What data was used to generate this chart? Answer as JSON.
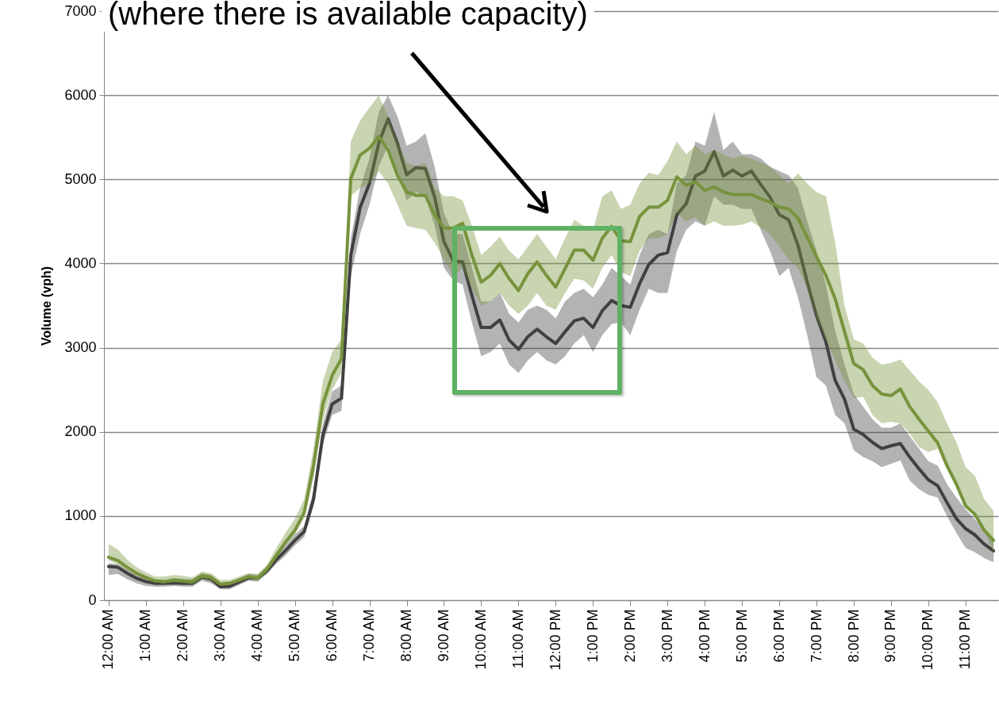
{
  "chart_data": {
    "type": "line",
    "ylabel": "Volume (vph)",
    "annotations": [
      "(where there is available capacity)"
    ],
    "x": [
      0,
      0.25,
      0.5,
      0.75,
      1,
      1.25,
      1.5,
      1.75,
      2,
      2.25,
      2.5,
      2.75,
      3,
      3.25,
      3.5,
      3.75,
      4,
      4.25,
      4.5,
      4.75,
      5,
      5.25,
      5.5,
      5.75,
      6,
      6.25,
      6.5,
      6.75,
      7,
      7.25,
      7.5,
      7.75,
      8,
      8.25,
      8.5,
      8.75,
      9,
      9.25,
      9.5,
      9.75,
      10,
      10.25,
      10.5,
      10.75,
      11,
      11.25,
      11.5,
      11.75,
      12,
      12.25,
      12.5,
      12.75,
      13,
      13.25,
      13.5,
      13.75,
      14,
      14.25,
      14.5,
      14.75,
      15,
      15.25,
      15.5,
      15.75,
      16,
      16.25,
      16.5,
      16.75,
      17,
      17.25,
      17.5,
      17.75,
      18,
      18.25,
      18.5,
      18.75,
      19,
      19.25,
      19.5,
      19.75,
      20,
      20.25,
      20.5,
      20.75,
      21,
      21.25,
      21.5,
      21.75,
      22,
      22.25,
      22.5,
      22.75,
      23,
      23.25,
      23.5,
      23.75
    ],
    "series": [
      {
        "color": "#404040",
        "values": [
          400,
          390,
          320,
          260,
          220,
          200,
          200,
          205,
          200,
          200,
          270,
          250,
          160,
          165,
          215,
          265,
          260,
          350,
          480,
          590,
          710,
          815,
          1200,
          1960,
          2330,
          2400,
          4100,
          4665,
          4950,
          5430,
          5720,
          5430,
          5055,
          5140,
          5130,
          4790,
          4260,
          4030,
          4020,
          3620,
          3240,
          3240,
          3330,
          3090,
          2980,
          3130,
          3220,
          3130,
          3050,
          3190,
          3320,
          3350,
          3240,
          3440,
          3560,
          3500,
          3480,
          3760,
          3990,
          4100,
          4130,
          4580,
          4710,
          5040,
          5100,
          5330,
          5040,
          5110,
          5040,
          5100,
          4940,
          4790,
          4580,
          4520,
          4220,
          3780,
          3380,
          3070,
          2610,
          2390,
          2030,
          1970,
          1875,
          1800,
          1835,
          1860,
          1700,
          1560,
          1430,
          1360,
          1160,
          970,
          850,
          775,
          665,
          585
        ],
        "lower": [
          300,
          310,
          250,
          200,
          170,
          160,
          160,
          170,
          160,
          160,
          230,
          200,
          130,
          130,
          180,
          230,
          220,
          310,
          430,
          530,
          650,
          750,
          1120,
          1850,
          2200,
          2250,
          3850,
          4350,
          4700,
          5150,
          5400,
          5100,
          4750,
          4850,
          4800,
          4450,
          3950,
          3800,
          3750,
          3300,
          2900,
          2950,
          3050,
          2800,
          2700,
          2850,
          2950,
          2850,
          2800,
          2900,
          3050,
          3150,
          2950,
          3150,
          3280,
          3300,
          3150,
          3450,
          3700,
          3650,
          3650,
          4150,
          4400,
          4500,
          4450,
          4800,
          4700,
          4700,
          4650,
          4650,
          4400,
          4150,
          3850,
          3950,
          3600,
          3150,
          2650,
          2550,
          2200,
          2100,
          1780,
          1700,
          1650,
          1580,
          1620,
          1660,
          1420,
          1320,
          1250,
          1220,
          1000,
          800,
          620,
          570,
          500,
          450
        ],
        "upper": [
          440,
          430,
          360,
          300,
          260,
          240,
          240,
          250,
          240,
          250,
          320,
          300,
          200,
          210,
          260,
          310,
          300,
          400,
          530,
          650,
          780,
          880,
          1300,
          2100,
          2480,
          2550,
          4300,
          4900,
          5250,
          5800,
          6000,
          5750,
          5400,
          5450,
          5550,
          5150,
          4600,
          4350,
          4350,
          3950,
          3550,
          3550,
          3650,
          3400,
          3300,
          3450,
          3500,
          3450,
          3350,
          3550,
          3650,
          3700,
          3600,
          3750,
          3950,
          3850,
          3750,
          4100,
          4350,
          4400,
          4350,
          4950,
          5050,
          5450,
          5400,
          5800,
          5350,
          5450,
          5300,
          5300,
          5250,
          5150,
          5100,
          5050,
          4900,
          4500,
          4150,
          3750,
          3200,
          2800,
          2450,
          2300,
          2150,
          2050,
          2050,
          2100,
          1950,
          1800,
          1650,
          1600,
          1380,
          1220,
          1080,
          960,
          830,
          720
        ]
      },
      {
        "color": "#77933c",
        "values": [
          510,
          470,
          390,
          320,
          270,
          230,
          220,
          240,
          230,
          220,
          290,
          270,
          190,
          200,
          240,
          280,
          260,
          370,
          530,
          690,
          830,
          1040,
          1600,
          2330,
          2670,
          2870,
          5010,
          5290,
          5370,
          5510,
          5350,
          5050,
          4850,
          4810,
          4810,
          4580,
          4420,
          4420,
          4480,
          4100,
          3780,
          3860,
          4000,
          3820,
          3680,
          3880,
          4020,
          3860,
          3720,
          3940,
          4160,
          4160,
          4040,
          4300,
          4440,
          4270,
          4260,
          4560,
          4670,
          4670,
          4750,
          5030,
          4930,
          4970,
          4870,
          4910,
          4850,
          4820,
          4820,
          4820,
          4770,
          4730,
          4670,
          4650,
          4540,
          4310,
          4080,
          3860,
          3580,
          3190,
          2810,
          2740,
          2550,
          2450,
          2430,
          2510,
          2300,
          2150,
          2010,
          1870,
          1600,
          1380,
          1120,
          1020,
          830,
          710
        ],
        "lower": [
          470,
          430,
          350,
          290,
          240,
          210,
          200,
          210,
          200,
          190,
          250,
          240,
          170,
          180,
          220,
          260,
          240,
          340,
          500,
          650,
          780,
          980,
          1450,
          2150,
          2500,
          2700,
          4800,
          4900,
          4950,
          5100,
          4950,
          4700,
          4450,
          4420,
          4400,
          4250,
          4050,
          3850,
          3950,
          3700,
          3500,
          3550,
          3650,
          3500,
          3400,
          3500,
          3650,
          3500,
          3450,
          3650,
          3820,
          3800,
          3700,
          3950,
          4100,
          3900,
          3850,
          4150,
          4300,
          4300,
          4350,
          4600,
          4500,
          4550,
          4450,
          4500,
          4450,
          4450,
          4460,
          4500,
          4430,
          4350,
          4200,
          4050,
          3950,
          3700,
          3350,
          3100,
          2850,
          2600,
          2400,
          2420,
          2200,
          2100,
          2120,
          2100,
          1980,
          1820,
          1760,
          1800,
          1550,
          1350,
          1120,
          1020,
          850,
          550
        ],
        "upper": [
          670,
          600,
          480,
          390,
          330,
          280,
          280,
          300,
          290,
          270,
          340,
          320,
          240,
          240,
          280,
          320,
          310,
          420,
          620,
          800,
          970,
          1200,
          1800,
          2600,
          2950,
          3100,
          5450,
          5700,
          5850,
          6000,
          5750,
          5450,
          5200,
          5150,
          5200,
          4900,
          4800,
          4800,
          4750,
          4450,
          4100,
          4200,
          4320,
          4150,
          4050,
          4200,
          4350,
          4200,
          4050,
          4300,
          4520,
          4450,
          4400,
          4800,
          4870,
          4650,
          4700,
          4950,
          5080,
          5050,
          5220,
          5450,
          5300,
          5400,
          5300,
          5350,
          5300,
          5250,
          5280,
          5250,
          5200,
          5150,
          5050,
          4950,
          5070,
          4950,
          4850,
          4800,
          4250,
          3500,
          3100,
          3050,
          2880,
          2800,
          2820,
          2860,
          2730,
          2600,
          2500,
          2350,
          2100,
          1880,
          1580,
          1480,
          1200,
          1060
        ]
      }
    ],
    "xlim": [
      -0.125,
      23.875
    ],
    "xticks": [
      {
        "value": 0,
        "label": "12:00 AM"
      },
      {
        "value": 1,
        "label": "1:00 AM"
      },
      {
        "value": 2,
        "label": "2:00 AM"
      },
      {
        "value": 3,
        "label": "3:00 AM"
      },
      {
        "value": 4,
        "label": "4:00 AM"
      },
      {
        "value": 5,
        "label": "5:00 AM"
      },
      {
        "value": 6,
        "label": "6:00 AM"
      },
      {
        "value": 7,
        "label": "7:00 AM"
      },
      {
        "value": 8,
        "label": "8:00 AM"
      },
      {
        "value": 9,
        "label": "9:00 AM"
      },
      {
        "value": 10,
        "label": "10:00 AM"
      },
      {
        "value": 11,
        "label": "11:00 AM"
      },
      {
        "value": 12,
        "label": "12:00 PM"
      },
      {
        "value": 13,
        "label": "1:00 PM"
      },
      {
        "value": 14,
        "label": "2:00 PM"
      },
      {
        "value": 15,
        "label": "3:00 PM"
      },
      {
        "value": 16,
        "label": "4:00 PM"
      },
      {
        "value": 17,
        "label": "5:00 PM"
      },
      {
        "value": 18,
        "label": "6:00 PM"
      },
      {
        "value": 19,
        "label": "7:00 PM"
      },
      {
        "value": 20,
        "label": "8:00 PM"
      },
      {
        "value": 21,
        "label": "9:00 PM"
      },
      {
        "value": 22,
        "label": "10:00 PM"
      },
      {
        "value": 23,
        "label": "11:00 PM"
      }
    ],
    "ylim": [
      0,
      7000
    ],
    "yticks": [
      0,
      1000,
      2000,
      3000,
      4000,
      5000,
      6000,
      7000
    ],
    "grid": "y"
  }
}
